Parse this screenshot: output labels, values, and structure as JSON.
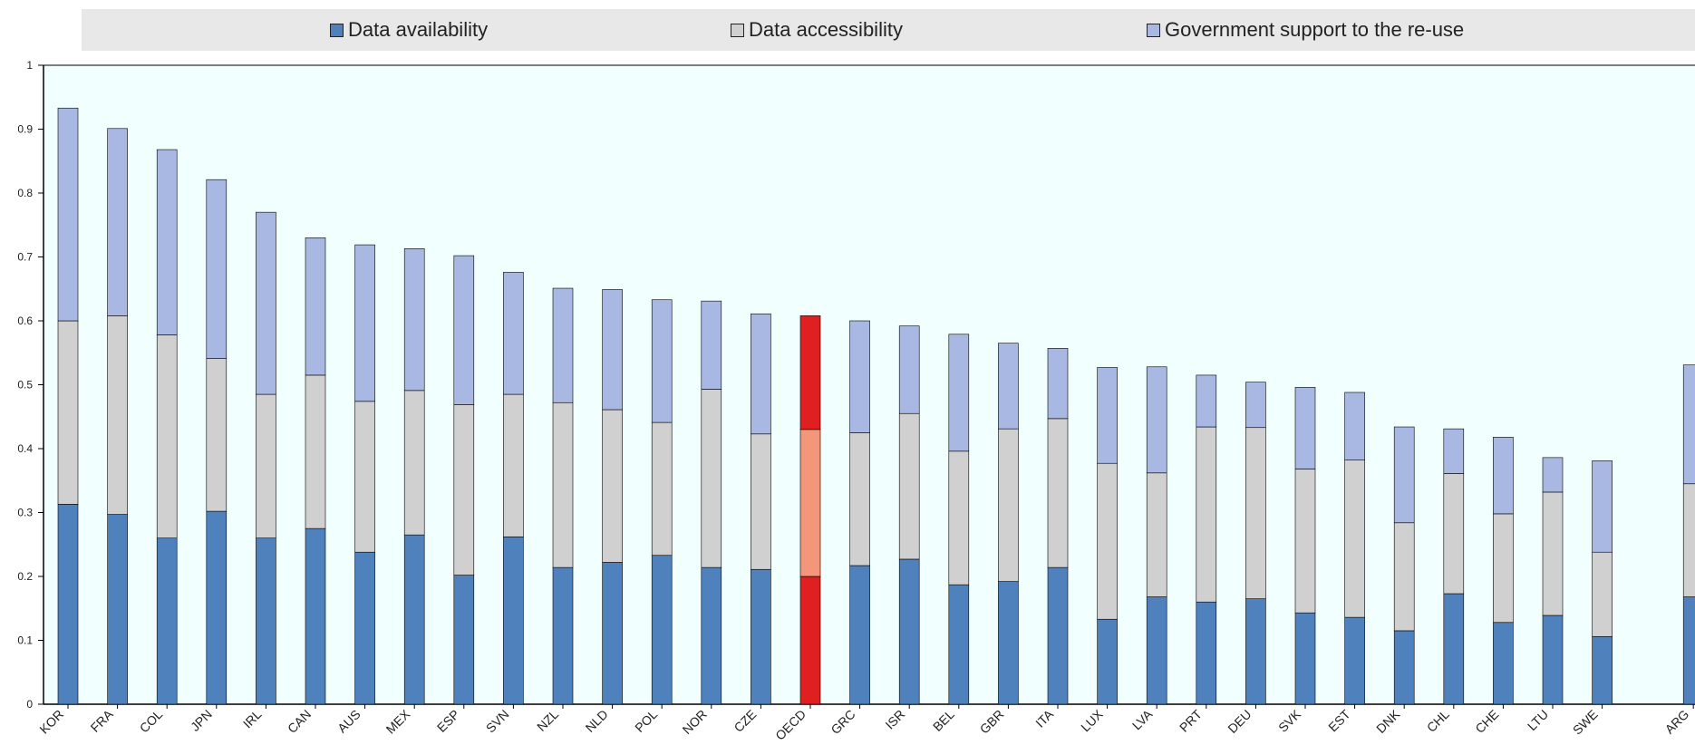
{
  "colors": {
    "availability": "#4f81bd",
    "accessibility": "#d0d0d0",
    "support": "#a9b8e2",
    "highlight_availability": "#e02020",
    "highlight_accessibility": "#f4967a",
    "highlight_support": "#e02020",
    "plot_background": "#f2ffff",
    "legend_background": "#e8e8e8"
  },
  "legend": {
    "items": [
      {
        "label": "Data availability",
        "color_key": "availability"
      },
      {
        "label": "Data accessibility",
        "color_key": "accessibility"
      },
      {
        "label": "Government support to the re-use",
        "color_key": "support"
      }
    ]
  },
  "chart_data": {
    "type": "bar",
    "stacked": true,
    "title": "",
    "xlabel": "",
    "ylabel": "",
    "ylim": [
      0,
      1
    ],
    "yticks": [
      "0",
      "0.1",
      "0.2",
      "0.3",
      "0.4",
      "0.5",
      "0.6",
      "0.7",
      "0.8",
      "0.9",
      "1"
    ],
    "highlight_category": "OECD",
    "legend_position": "top",
    "categories": [
      "KOR",
      "FRA",
      "COL",
      "JPN",
      "IRL",
      "CAN",
      "AUS",
      "MEX",
      "ESP",
      "SVN",
      "NZL",
      "NLD",
      "POL",
      "NOR",
      "CZE",
      "OECD",
      "GRC",
      "ISR",
      "BEL",
      "GBR",
      "ITA",
      "LUX",
      "LVA",
      "PRT",
      "DEU",
      "SVK",
      "EST",
      "DNK",
      "CHL",
      "CHE",
      "LTU",
      "SWE",
      "ARG"
    ],
    "series": [
      {
        "name": "Data availability",
        "values": [
          0.313,
          0.297,
          0.26,
          0.302,
          0.26,
          0.275,
          0.238,
          0.265,
          0.202,
          0.262,
          0.214,
          0.222,
          0.233,
          0.214,
          0.211,
          0.2,
          0.217,
          0.227,
          0.187,
          0.192,
          0.214,
          0.133,
          0.168,
          0.16,
          0.165,
          0.143,
          0.136,
          0.115,
          0.173,
          0.128,
          0.139,
          0.106,
          0.168
        ]
      },
      {
        "name": "Data accessibility",
        "values": [
          0.287,
          0.311,
          0.318,
          0.239,
          0.225,
          0.24,
          0.236,
          0.226,
          0.267,
          0.223,
          0.258,
          0.239,
          0.208,
          0.279,
          0.212,
          0.23,
          0.208,
          0.228,
          0.209,
          0.239,
          0.233,
          0.244,
          0.194,
          0.274,
          0.268,
          0.225,
          0.246,
          0.169,
          0.188,
          0.17,
          0.193,
          0.132,
          0.177
        ]
      },
      {
        "name": "Government support to the re-use",
        "values": [
          0.333,
          0.293,
          0.29,
          0.28,
          0.285,
          0.215,
          0.245,
          0.222,
          0.233,
          0.191,
          0.179,
          0.188,
          0.192,
          0.138,
          0.188,
          0.178,
          0.175,
          0.137,
          0.183,
          0.134,
          0.11,
          0.15,
          0.166,
          0.081,
          0.071,
          0.128,
          0.106,
          0.15,
          0.07,
          0.12,
          0.054,
          0.143,
          0.186
        ]
      }
    ]
  }
}
